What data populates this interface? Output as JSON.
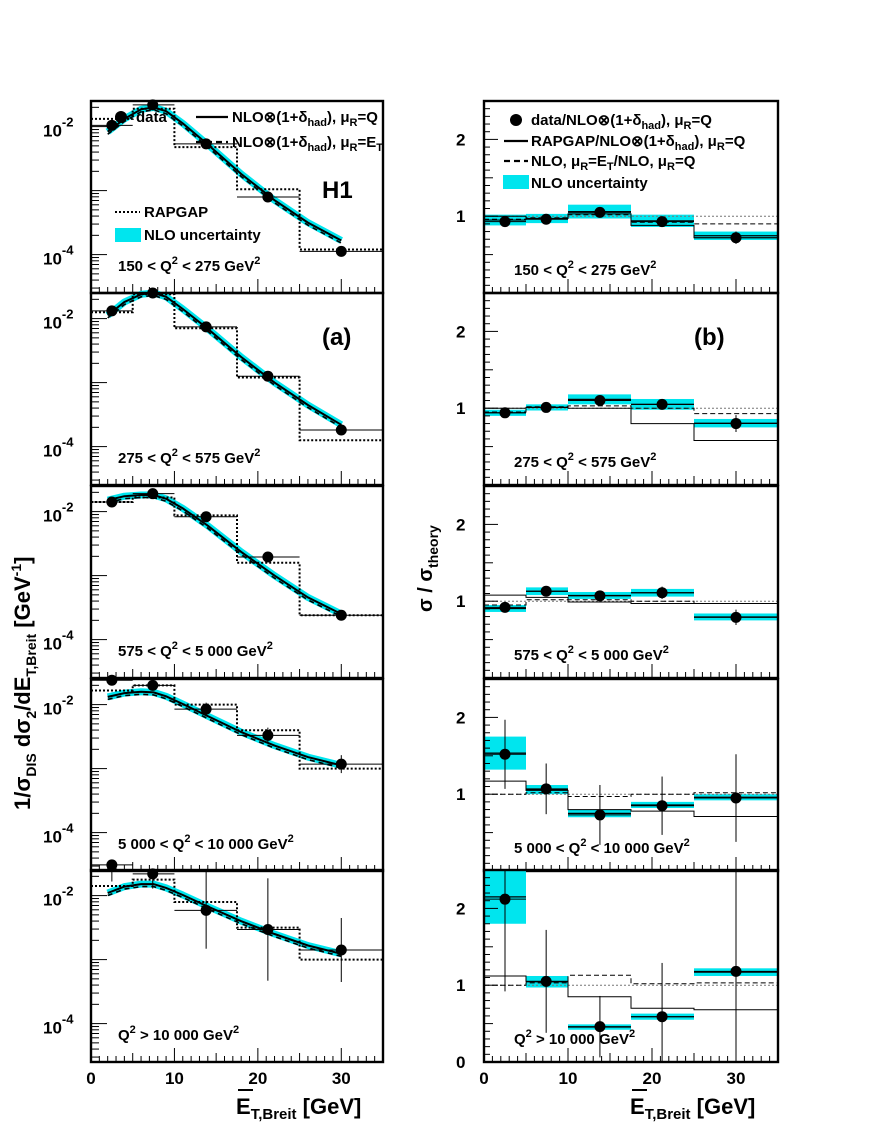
{
  "figure": {
    "y_title_left": "1/σ",
    "y_title_left_sub": "DIS",
    "y_title_left_mid": " dσ",
    "y_title_left_sub2": "2",
    "y_title_left_tail": "/dE",
    "y_title_left_sub3": "T,Breit",
    "y_title_left_unit": " [GeV",
    "y_title_left_unit_sup": "-1",
    "y_title_left_unit_end": "]",
    "y_title_right": "σ / σ",
    "y_title_right_sub": "theory",
    "x_title_main": "E",
    "x_title_sub": "T,Breit",
    "x_title_unit": " [GeV]",
    "tag_h1": "H1",
    "tag_a": "(a)",
    "tag_b": "(b)",
    "colors": {
      "band": "#00e5ee",
      "line": "#000000"
    }
  },
  "legend_left": {
    "data": "data",
    "nlo_q": "NLO⊗(1+δ",
    "nlo_q_sub": "had",
    "nlo_q_tail": "), μ",
    "nlo_q_sub2": "R",
    "nlo_q_end": "=Q",
    "nlo_et": "NLO⊗(1+δ",
    "nlo_et_sub": "had",
    "nlo_et_tail": "), μ",
    "nlo_et_sub2": "R",
    "nlo_et_end": "=E",
    "nlo_et_sub3": "T",
    "rapgap": "RAPGAP",
    "nlo_unc": "NLO uncertainty"
  },
  "legend_right": {
    "l1": "data/NLO⊗(1+δ",
    "l1_sub": "had",
    "l1_tail": "), μ",
    "l1_sub2": "R",
    "l1_end": "=Q",
    "l2": "RAPGAP/NLO⊗(1+δ",
    "l2_sub": "had",
    "l2_tail": "), μ",
    "l2_sub2": "R",
    "l2_end": "=Q",
    "l3": "NLO, μ",
    "l3_sub": "R",
    "l3_mid": "=E",
    "l3_sub2": "T",
    "l3_tail": "/NLO, μ",
    "l3_sub3": "R",
    "l3_end": "=Q",
    "l4": "NLO uncertainty"
  },
  "chart_data": {
    "type": "line",
    "x_bins": [
      [
        0,
        5
      ],
      [
        5,
        10
      ],
      [
        10,
        17.5
      ],
      [
        17.5,
        25
      ],
      [
        25,
        35
      ]
    ],
    "x_centers": [
      2.5,
      7.4,
      13.8,
      21.2,
      30.0
    ],
    "xlim": [
      0,
      35
    ],
    "x_ticks": [
      0,
      10,
      20,
      30
    ],
    "left_ylim_log10": [
      -4.6,
      -1.6
    ],
    "left_y_ticks": [
      {
        "base": "10",
        "exp": "-2"
      },
      {
        "base": "10",
        "exp": "-4"
      }
    ],
    "right_ylim": [
      0,
      2.5
    ],
    "right_y_ticks": [
      "0",
      "1",
      "2"
    ],
    "panels": [
      {
        "q2_label": "150 < Q",
        "q2_sup": "2",
        "q2_tail": " < 275 GeV",
        "q2_unit_sup": "2",
        "data_log10": [
          -1.98,
          -1.66,
          -2.27,
          -3.1,
          -3.95
        ],
        "data_err_log": [
          0.03,
          0.03,
          0.03,
          0.04,
          0.05
        ],
        "nlo_curve_log10": [
          [
            2,
            -2.08
          ],
          [
            4,
            -1.88
          ],
          [
            6,
            -1.73
          ],
          [
            7.5,
            -1.7
          ],
          [
            9,
            -1.76
          ],
          [
            11,
            -1.95
          ],
          [
            14,
            -2.28
          ],
          [
            18,
            -2.74
          ],
          [
            22,
            -3.15
          ],
          [
            26,
            -3.5
          ],
          [
            30,
            -3.78
          ]
        ],
        "rapgap_log10": [
          -1.88,
          -1.72,
          -2.32,
          -2.98,
          -3.92
        ],
        "ratio_data": [
          0.93,
          0.96,
          1.05,
          0.93,
          0.72
        ],
        "ratio_err": [
          0.04,
          0.04,
          0.04,
          0.05,
          0.08
        ],
        "ratio_band": [
          [
            0.88,
            1.02
          ],
          [
            0.91,
            1.03
          ],
          [
            0.97,
            1.15
          ],
          [
            0.86,
            1.02
          ],
          [
            0.69,
            0.8
          ]
        ],
        "ratio_rapgap": [
          1.0,
          0.97,
          1.03,
          0.88,
          0.72
        ],
        "ratio_et": [
          0.96,
          0.98,
          1.02,
          0.92,
          0.9
        ]
      },
      {
        "q2_label": "275 < Q",
        "q2_sup": "2",
        "q2_tail": " < 575 GeV",
        "q2_unit_sup": "2",
        "data_log10": [
          -1.88,
          -1.6,
          -2.13,
          -2.9,
          -3.74
        ],
        "data_err_log": [
          0.03,
          0.03,
          0.03,
          0.04,
          0.06
        ],
        "nlo_curve_log10": [
          [
            2,
            -1.95
          ],
          [
            4,
            -1.74
          ],
          [
            6,
            -1.62
          ],
          [
            7.5,
            -1.6
          ],
          [
            9,
            -1.66
          ],
          [
            11,
            -1.85
          ],
          [
            14,
            -2.16
          ],
          [
            18,
            -2.6
          ],
          [
            22,
            -3.0
          ],
          [
            26,
            -3.35
          ],
          [
            30,
            -3.66
          ]
        ],
        "rapgap_log10": [
          -1.9,
          -1.62,
          -2.15,
          -2.92,
          -3.9
        ],
        "ratio_data": [
          0.94,
          1.01,
          1.1,
          1.05,
          0.8
        ],
        "ratio_err": [
          0.04,
          0.04,
          0.05,
          0.06,
          0.11
        ],
        "ratio_band": [
          [
            0.9,
            0.98
          ],
          [
            0.97,
            1.05
          ],
          [
            1.05,
            1.18
          ],
          [
            0.98,
            1.12
          ],
          [
            0.75,
            0.86
          ]
        ],
        "ratio_rapgap": [
          1.0,
          1.01,
          1.0,
          0.8,
          0.58
        ],
        "ratio_et": [
          0.95,
          1.02,
          1.03,
          1.0,
          0.93
        ]
      },
      {
        "q2_label": "575 < Q",
        "q2_sup": "2",
        "q2_tail": " < 5 000 GeV",
        "q2_unit_sup": "2",
        "data_log10": [
          -1.85,
          -1.72,
          -2.08,
          -2.71,
          -3.62
        ],
        "data_err_log": [
          0.03,
          0.03,
          0.04,
          0.05,
          0.07
        ],
        "nlo_curve_log10": [
          [
            2,
            -1.82
          ],
          [
            4,
            -1.76
          ],
          [
            6,
            -1.74
          ],
          [
            7.5,
            -1.74
          ],
          [
            9,
            -1.8
          ],
          [
            11,
            -1.95
          ],
          [
            14,
            -2.22
          ],
          [
            18,
            -2.63
          ],
          [
            22,
            -3.0
          ],
          [
            26,
            -3.34
          ],
          [
            30,
            -3.6
          ]
        ],
        "rapgap_log10": [
          -1.85,
          -1.78,
          -2.06,
          -2.8,
          -3.62
        ],
        "ratio_data": [
          0.92,
          1.13,
          1.07,
          1.11,
          0.79
        ],
        "ratio_err": [
          0.05,
          0.05,
          0.06,
          0.08,
          0.1
        ],
        "ratio_band": [
          [
            0.86,
            0.95
          ],
          [
            1.08,
            1.18
          ],
          [
            1.03,
            1.12
          ],
          [
            1.06,
            1.16
          ],
          [
            0.75,
            0.84
          ]
        ],
        "ratio_rapgap": [
          1.08,
          1.05,
          0.99,
          0.97,
          0.97
        ],
        "ratio_et": [
          0.95,
          1.02,
          1.02,
          1.0,
          0.97
        ]
      },
      {
        "q2_label": "5 000 < Q",
        "q2_sup": "2",
        "q2_tail": " < 10 000 GeV",
        "q2_unit_sup": "2",
        "data_log10": [
          -1.62,
          -1.7,
          -2.07,
          -2.48,
          -2.93
        ],
        "data_err_log": [
          0.08,
          0.08,
          0.1,
          0.12,
          0.14
        ],
        "nlo_curve_log10": [
          [
            2,
            -1.88
          ],
          [
            4,
            -1.82
          ],
          [
            6,
            -1.8
          ],
          [
            7.5,
            -1.81
          ],
          [
            9,
            -1.87
          ],
          [
            11,
            -1.99
          ],
          [
            14,
            -2.18
          ],
          [
            18,
            -2.43
          ],
          [
            22,
            -2.64
          ],
          [
            26,
            -2.82
          ],
          [
            30,
            -2.95
          ]
        ],
        "rapgap_log10": [
          -1.78,
          -1.7,
          -2.0,
          -2.4,
          -3.0
        ],
        "ratio_data": [
          1.52,
          1.07,
          0.73,
          0.85,
          0.95
        ],
        "ratio_err": [
          0.45,
          0.33,
          0.39,
          0.38,
          0.57
        ],
        "ratio_band": [
          [
            1.32,
            1.75
          ],
          [
            1.0,
            1.12
          ],
          [
            0.7,
            0.8
          ],
          [
            0.82,
            0.9
          ],
          [
            0.92,
            1.0
          ]
        ],
        "ratio_rapgap": [
          1.17,
          1.05,
          0.8,
          0.78,
          0.71
        ],
        "ratio_et": [
          1.0,
          1.02,
          0.97,
          1.0,
          1.02
        ]
      },
      {
        "q2_label": "Q",
        "q2_sup": "2",
        "q2_tail": " > 10 000 GeV",
        "q2_unit_sup": "2",
        "data_log10": [
          -1.52,
          -1.66,
          -2.23,
          -2.53,
          -2.85
        ],
        "data_err_log": [
          0.26,
          0.23,
          0.6,
          0.8,
          0.5
        ],
        "nlo_curve_log10": [
          [
            2,
            -1.96
          ],
          [
            4,
            -1.86
          ],
          [
            6,
            -1.82
          ],
          [
            7.5,
            -1.82
          ],
          [
            9,
            -1.88
          ],
          [
            11,
            -1.99
          ],
          [
            14,
            -2.17
          ],
          [
            18,
            -2.4
          ],
          [
            22,
            -2.6
          ],
          [
            26,
            -2.78
          ],
          [
            30,
            -2.91
          ]
        ],
        "rapgap_log10": [
          -1.85,
          -1.75,
          -2.1,
          -2.5,
          -3.0
        ],
        "ratio_data": [
          2.12,
          1.05,
          0.46,
          0.59,
          1.18
        ],
        "ratio_err": [
          1.2,
          0.67,
          0.4,
          0.7,
          1.32
        ],
        "ratio_band": [
          [
            1.8,
            2.5
          ],
          [
            0.97,
            1.12
          ],
          [
            0.42,
            0.49
          ],
          [
            0.55,
            0.63
          ],
          [
            1.12,
            1.22
          ]
        ],
        "ratio_rapgap": [
          1.12,
          1.05,
          0.85,
          0.7,
          0.68
        ],
        "ratio_et": [
          1.0,
          1.03,
          1.13,
          1.02,
          1.03
        ]
      }
    ]
  }
}
